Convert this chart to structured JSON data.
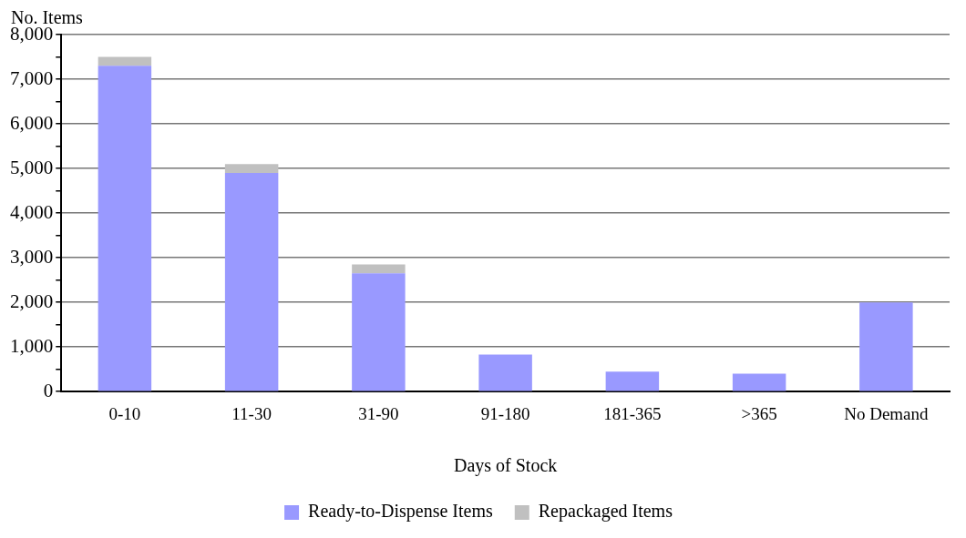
{
  "chart_data": {
    "type": "bar",
    "stacked": true,
    "ylabel": "No. Items",
    "xlabel": "Days of Stock",
    "categories": [
      "0-10",
      "11-30",
      "31-90",
      "91-180",
      "181-365",
      ">365",
      "No Demand"
    ],
    "series": [
      {
        "name": "Ready-to-Dispense Items",
        "color": "#9999ff",
        "values": [
          7300,
          4900,
          2650,
          830,
          450,
          400,
          2000
        ]
      },
      {
        "name": "Repackaged Items",
        "color": "#c0c0c0",
        "values": [
          200,
          200,
          200,
          null,
          null,
          null,
          null
        ]
      }
    ],
    "ylim": [
      0,
      8000
    ],
    "yticks": [
      0,
      {
        "value": 500,
        "label": null
      },
      {
        "value": 1000,
        "label": "1,000"
      },
      {
        "value": 1500,
        "label": null
      },
      {
        "value": 2000,
        "label": "2,000"
      },
      {
        "value": 2500,
        "label": null
      },
      {
        "value": 3000,
        "label": "3,000"
      },
      {
        "value": 3500,
        "label": null
      },
      {
        "value": 4000,
        "label": "4,000"
      },
      {
        "value": 4500,
        "label": null
      },
      {
        "value": 5000,
        "label": "5,000"
      },
      {
        "value": 5500,
        "label": null
      },
      {
        "value": 6000,
        "label": "6,000"
      },
      {
        "value": 6500,
        "label": null
      },
      {
        "value": 7000,
        "label": "7,000"
      },
      {
        "value": 7500,
        "label": null
      },
      {
        "value": 8000,
        "label": "8,000"
      }
    ],
    "grid": "y",
    "legend": "bottom"
  }
}
